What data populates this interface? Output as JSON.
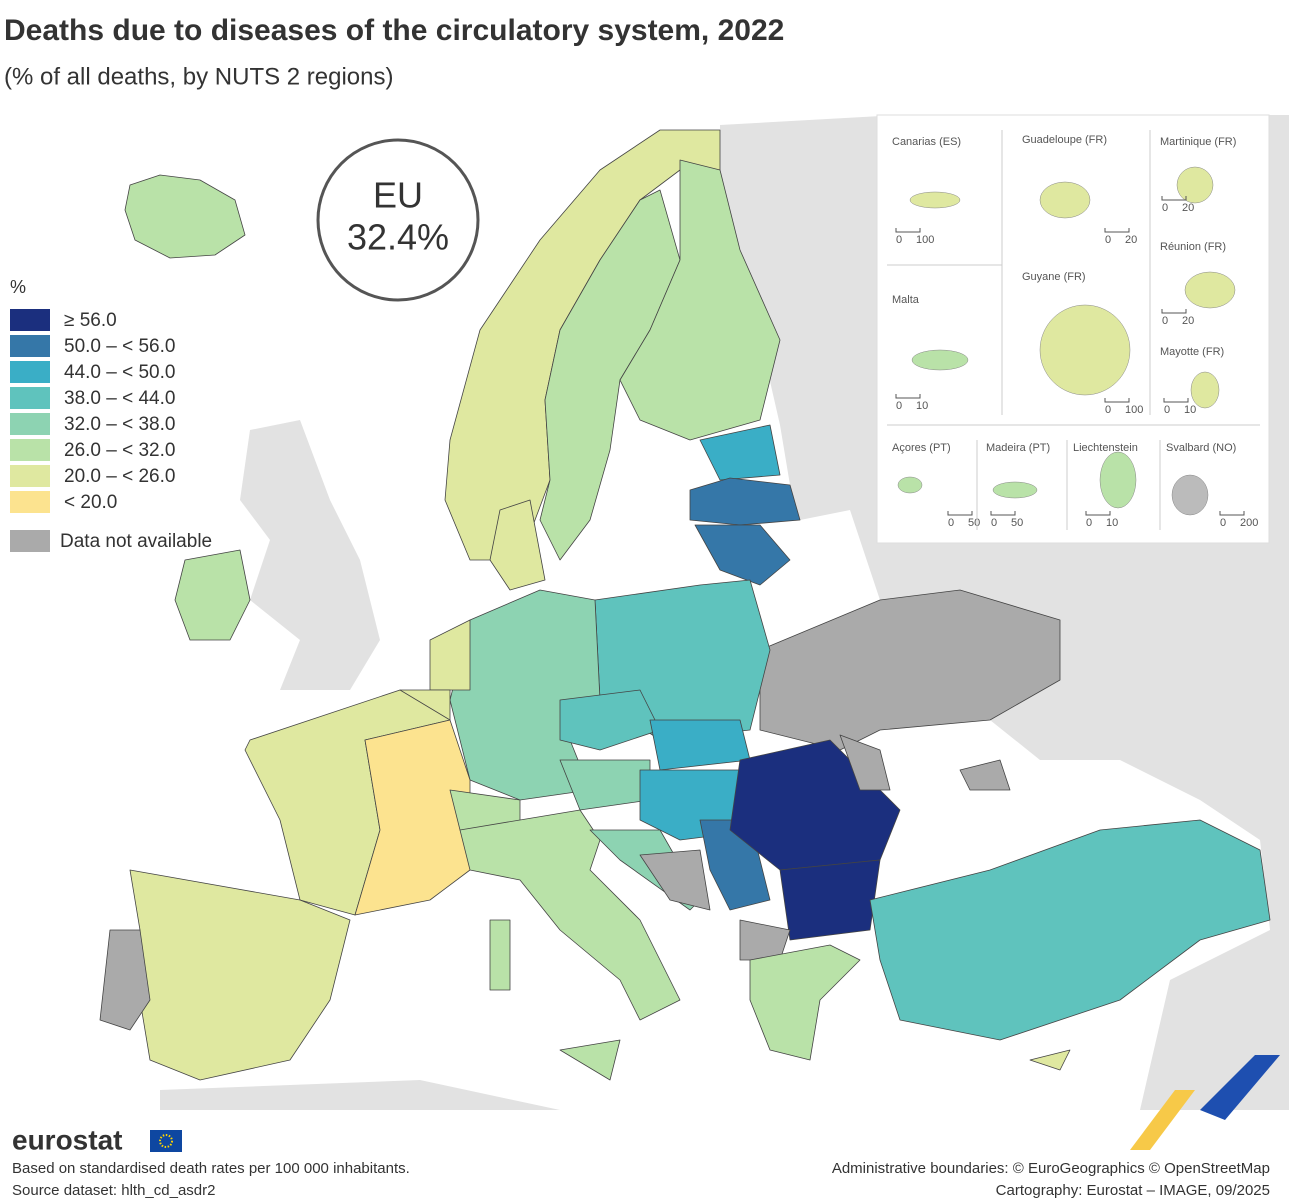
{
  "title": "Deaths due to diseases of the circulatory system, 2022",
  "subtitle": "(% of all deaths, by NUTS 2 regions)",
  "badge": {
    "label": "EU",
    "value": "32.4%"
  },
  "legend": {
    "unit": "%",
    "classes": [
      {
        "label": "≥ 56.0",
        "color": "#1b2f7e"
      },
      {
        "label": "50.0 – < 56.0",
        "color": "#3577a8"
      },
      {
        "label": "44.0 – < 50.0",
        "color": "#3aaec6"
      },
      {
        "label": "38.0 – < 44.0",
        "color": "#5fc3bd"
      },
      {
        "label": "32.0 – < 38.0",
        "color": "#8dd3b2"
      },
      {
        "label": "26.0 – < 32.0",
        "color": "#b9e2a8"
      },
      {
        "label": "20.0 – < 26.0",
        "color": "#dfe8a0"
      },
      {
        "label": "< 20.0",
        "color": "#fce38f"
      }
    ],
    "na": {
      "label": "Data not available",
      "color": "#aaaaaa"
    }
  },
  "insets": [
    {
      "name": "Canarias (ES)",
      "scale": [
        "0",
        "100"
      ]
    },
    {
      "name": "Guadeloupe (FR)",
      "scale": [
        "0",
        "20"
      ]
    },
    {
      "name": "Martinique (FR)",
      "scale": [
        "0",
        "20"
      ]
    },
    {
      "name": "Réunion (FR)",
      "scale": [
        "0",
        "20"
      ]
    },
    {
      "name": "Malta",
      "scale": [
        "0",
        "10"
      ]
    },
    {
      "name": "Guyane (FR)",
      "scale": [
        "0",
        "100"
      ]
    },
    {
      "name": "Mayotte (FR)",
      "scale": [
        "0",
        "10"
      ]
    },
    {
      "name": "Açores (PT)",
      "scale": [
        "0",
        "50"
      ]
    },
    {
      "name": "Madeira (PT)",
      "scale": [
        "0",
        "50"
      ]
    },
    {
      "name": "Liechtenstein",
      "scale": [
        "0",
        "10"
      ]
    },
    {
      "name": "Svalbard (NO)",
      "scale": [
        "0",
        "200"
      ]
    }
  ],
  "footer": {
    "logo": "eurostat",
    "note": "Based on standardised death rates per 100 000 inhabitants.",
    "source": "Source dataset: hlth_cd_asdr2",
    "credits": [
      "Administrative boundaries: © EuroGeographics © OpenStreetMap",
      "Cartography: Eurostat – IMAGE, 09/2025"
    ]
  }
}
